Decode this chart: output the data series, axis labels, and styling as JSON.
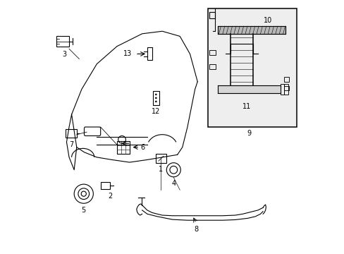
{
  "background_color": "#ffffff",
  "line_color": "#000000",
  "fig_width": 4.89,
  "fig_height": 3.6,
  "dpi": 100,
  "inset_bg": "#eeeeee",
  "gray_fill": "#aaaaaa",
  "gray_fill2": "#cccccc"
}
